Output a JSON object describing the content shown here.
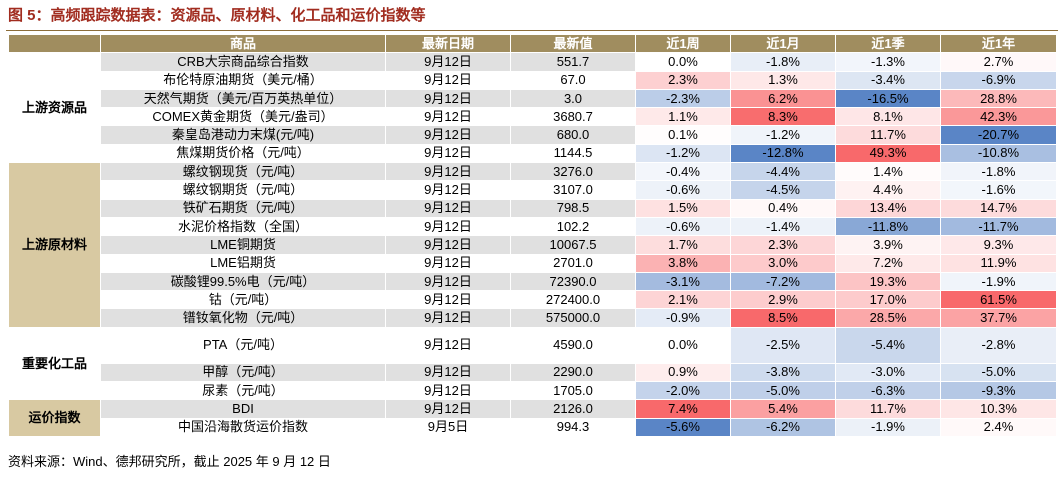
{
  "title": "图 5：高频跟踪数据表：资源品、原材料、化工品和运价指数等",
  "table": {
    "header": [
      "商品",
      "最新日期",
      "最新值",
      "近1周",
      "近1月",
      "近1季",
      "近1年"
    ],
    "groups": [
      {
        "name": "上游资源品",
        "rows": [
          [
            "CRB大宗商品综合指数",
            "9月12日",
            "551.7",
            "0.0%",
            "-1.8%",
            "-1.3%",
            "2.7%"
          ],
          [
            "布伦特原油期货（美元/桶）",
            "9月12日",
            "67.0",
            "2.3%",
            "1.3%",
            "-3.4%",
            "-6.9%"
          ],
          [
            "天然气期货（美元/百万英热单位）",
            "9月12日",
            "3.0",
            "-2.3%",
            "6.2%",
            "-16.5%",
            "28.8%"
          ],
          [
            "COMEX黄金期货（美元/盎司）",
            "9月12日",
            "3680.7",
            "1.1%",
            "8.3%",
            "8.1%",
            "42.3%"
          ],
          [
            "秦皇岛港动力末煤(元/吨)",
            "9月12日",
            "680.0",
            "0.1%",
            "-1.2%",
            "11.7%",
            "-20.7%"
          ],
          [
            "焦煤期货价格（元/吨）",
            "9月12日",
            "1144.5",
            "-1.2%",
            "-12.8%",
            "49.3%",
            "-10.8%"
          ]
        ]
      },
      {
        "name": "上游原材料",
        "rows": [
          [
            "螺纹钢现货（元/吨）",
            "9月12日",
            "3276.0",
            "-0.4%",
            "-4.4%",
            "1.4%",
            "-1.8%"
          ],
          [
            "螺纹钢期货（元/吨）",
            "9月12日",
            "3107.0",
            "-0.6%",
            "-4.5%",
            "4.4%",
            "-1.6%"
          ],
          [
            "铁矿石期货（元/吨）",
            "9月12日",
            "798.5",
            "1.5%",
            "0.4%",
            "13.4%",
            "14.7%"
          ],
          [
            "水泥价格指数（全国）",
            "9月12日",
            "102.2",
            "-0.6%",
            "-1.4%",
            "-11.8%",
            "-11.7%"
          ],
          [
            "LME铜期货",
            "9月12日",
            "10067.5",
            "1.7%",
            "2.3%",
            "3.9%",
            "9.3%"
          ],
          [
            "LME铝期货",
            "9月12日",
            "2701.0",
            "3.8%",
            "3.0%",
            "7.2%",
            "11.9%"
          ],
          [
            "碳酸锂99.5%电（元/吨）",
            "9月12日",
            "72390.0",
            "-3.1%",
            "-7.2%",
            "19.3%",
            "-1.9%"
          ],
          [
            "钴（元/吨）",
            "9月12日",
            "272400.0",
            "2.1%",
            "2.9%",
            "17.0%",
            "61.5%"
          ],
          [
            "镨钕氧化物（元/吨）",
            "9月12日",
            "575000.0",
            "-0.9%",
            "8.5%",
            "28.5%",
            "37.7%"
          ]
        ]
      },
      {
        "name": "重要化工品",
        "rows": [
          [
            "PTA（元/吨）",
            "9月12日",
            "4590.0",
            "0.0%",
            "-2.5%",
            "-5.4%",
            "-2.8%"
          ],
          [
            "甲醇（元/吨）",
            "9月12日",
            "2290.0",
            "0.9%",
            "-3.8%",
            "-3.0%",
            "-5.0%"
          ],
          [
            "尿素（元/吨）",
            "9月12日",
            "1705.0",
            "-2.0%",
            "-5.0%",
            "-6.3%",
            "-9.3%"
          ]
        ]
      },
      {
        "name": "运价指数",
        "rows": [
          [
            "BDI",
            "9月12日",
            "2126.0",
            "7.4%",
            "5.4%",
            "11.7%",
            "10.3%"
          ],
          [
            "中国沿海散货运价指数",
            "9月5日",
            "994.3",
            "-5.6%",
            "-6.2%",
            "-1.9%",
            "2.4%"
          ]
        ]
      }
    ]
  },
  "source": "资料来源：Wind、德邦研究所，截止 2025 年 9 月 12 日"
}
